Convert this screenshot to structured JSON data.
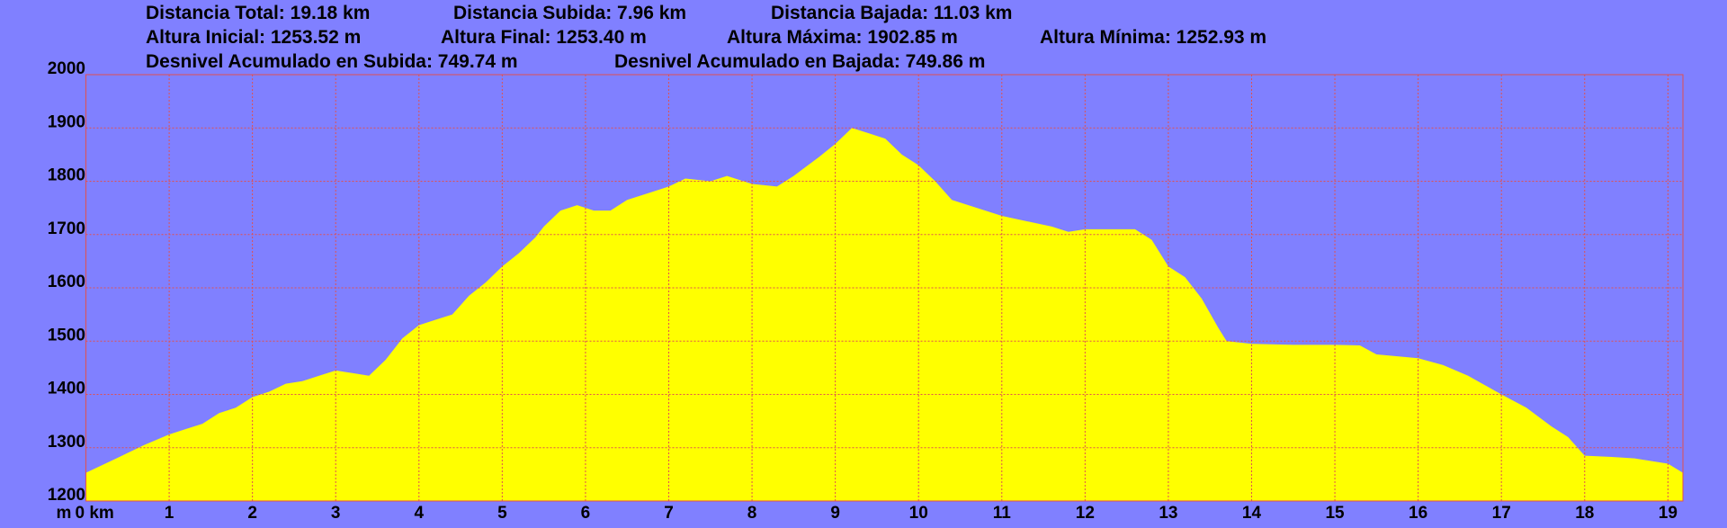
{
  "chart_data": {
    "type": "area",
    "stats": [
      [
        "Distancia Total: 19.18 km",
        "Distancia Subida: 7.96 km",
        "Distancia Bajada: 11.03 km"
      ],
      [
        "Altura Inicial: 1253.52 m",
        "Altura Final: 1253.40 m",
        "Altura Máxima: 1902.85 m",
        "Altura Mínima: 1252.93 m"
      ],
      [
        "Desnivel Acumulado en Subida: 749.74 m",
        "Desnivel Acumulado en Bajada: 749.86 m"
      ]
    ],
    "y_label": "m",
    "x": [
      0,
      0.3,
      0.5,
      0.7,
      1.0,
      1.2,
      1.4,
      1.6,
      1.8,
      2.0,
      2.2,
      2.4,
      2.6,
      2.8,
      3.0,
      3.2,
      3.4,
      3.6,
      3.8,
      4.0,
      4.2,
      4.4,
      4.6,
      4.8,
      5.0,
      5.2,
      5.4,
      5.5,
      5.7,
      5.9,
      6.1,
      6.3,
      6.5,
      6.8,
      7.0,
      7.2,
      7.5,
      7.7,
      8.0,
      8.3,
      8.5,
      8.8,
      9.0,
      9.2,
      9.4,
      9.6,
      9.8,
      10.0,
      10.2,
      10.4,
      10.7,
      11.0,
      11.3,
      11.6,
      11.8,
      12.0,
      12.3,
      12.6,
      12.8,
      13.0,
      13.2,
      13.4,
      13.6,
      13.7,
      14.0,
      14.5,
      15.0,
      15.3,
      15.5,
      16.0,
      16.3,
      16.6,
      17.0,
      17.3,
      17.6,
      17.8,
      18.0,
      18.3,
      18.6,
      19.0,
      19.18
    ],
    "values": [
      1253,
      1275,
      1290,
      1305,
      1325,
      1335,
      1345,
      1365,
      1375,
      1395,
      1405,
      1420,
      1425,
      1435,
      1445,
      1440,
      1435,
      1465,
      1505,
      1530,
      1540,
      1550,
      1585,
      1610,
      1640,
      1665,
      1695,
      1715,
      1745,
      1755,
      1745,
      1745,
      1765,
      1780,
      1790,
      1805,
      1800,
      1810,
      1795,
      1790,
      1810,
      1845,
      1870,
      1900,
      1890,
      1880,
      1850,
      1830,
      1800,
      1765,
      1750,
      1735,
      1725,
      1715,
      1705,
      1710,
      1710,
      1710,
      1690,
      1640,
      1620,
      1580,
      1525,
      1500,
      1495,
      1493,
      1493,
      1492,
      1475,
      1468,
      1455,
      1435,
      1400,
      1375,
      1340,
      1320,
      1285,
      1283,
      1280,
      1270,
      1253
    ],
    "color": "#ffff00",
    "grid_color": "#e05050",
    "xlim": [
      0,
      19.18
    ],
    "ylim": [
      1200,
      2000
    ],
    "xticks": [
      {
        "value": 0,
        "label": "0 km"
      },
      1,
      2,
      3,
      4,
      5,
      6,
      7,
      8,
      9,
      10,
      11,
      12,
      13,
      14,
      15,
      16,
      17,
      18,
      19
    ],
    "yticks": [
      1200,
      1300,
      1400,
      1500,
      1600,
      1700,
      1800,
      1900,
      2000
    ],
    "grid": true
  }
}
